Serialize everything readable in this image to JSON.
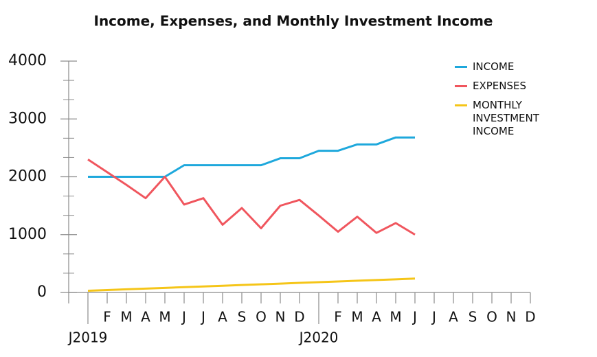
{
  "chart_data": {
    "type": "line",
    "title": "Income, Expenses, and Monthly Investment Income",
    "categories": [
      "J2019",
      "F",
      "M",
      "A",
      "M",
      "J",
      "J",
      "A",
      "S",
      "O",
      "N",
      "D",
      "J2020",
      "F",
      "M",
      "A",
      "M",
      "J",
      "J",
      "A",
      "S",
      "O",
      "N",
      "D"
    ],
    "series": [
      {
        "name": "INCOME",
        "color": "#1ea8dc",
        "values": [
          2000,
          2000,
          2000,
          2000,
          2000,
          2200,
          2200,
          2200,
          2200,
          2200,
          2320,
          2320,
          2450,
          2450,
          2560,
          2560,
          2680,
          2680,
          null,
          null,
          null,
          null,
          null,
          null
        ]
      },
      {
        "name": "EXPENSES",
        "color": "#f0565e",
        "values": [
          2300,
          2080,
          1860,
          1630,
          2000,
          1520,
          1630,
          1170,
          1460,
          1110,
          1500,
          1600,
          1330,
          1050,
          1310,
          1030,
          1200,
          1000,
          null,
          null,
          null,
          null,
          null,
          null
        ]
      },
      {
        "name": "MONTHLY INVESTMENT INCOME",
        "color": "#f5c518",
        "values": [
          30,
          42,
          55,
          67,
          79,
          92,
          104,
          116,
          129,
          141,
          153,
          166,
          178,
          190,
          203,
          215,
          227,
          240,
          null,
          null,
          null,
          null,
          null,
          null
        ]
      }
    ],
    "ylim": [
      0,
      4000
    ],
    "yticks": [
      0,
      1000,
      2000,
      3000,
      4000
    ],
    "legend": "top-right"
  }
}
